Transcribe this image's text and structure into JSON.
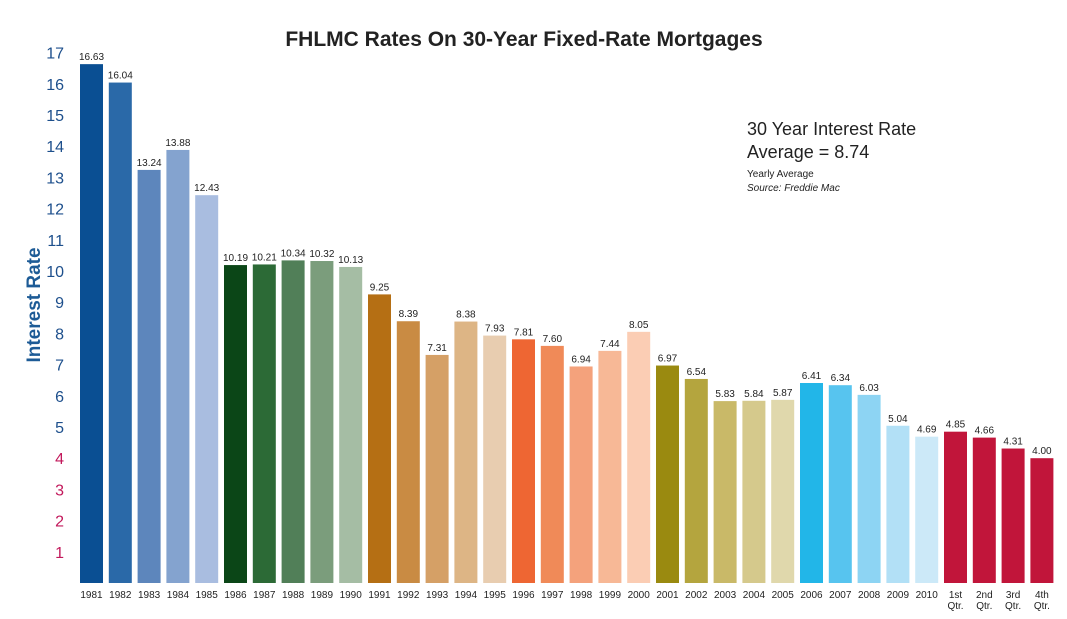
{
  "chart_data": {
    "type": "bar",
    "title": "FHLMC Rates On 30-Year Fixed-Rate Mortgages",
    "xlabel": "",
    "ylabel": "Interest Rate",
    "ylim": [
      0,
      17
    ],
    "yticks": [
      1,
      2,
      3,
      4,
      5,
      6,
      7,
      8,
      9,
      10,
      11,
      12,
      13,
      14,
      15,
      16,
      17
    ],
    "ytick_colors": {
      "1-4": "#c2185b",
      "5-17": "#1d4f8c"
    },
    "grid": false,
    "legend": "none",
    "note": {
      "line1": "30 Year Interest Rate",
      "line2": "Average = 8.74",
      "line3": "Yearly Average",
      "line4": "Source: Freddie Mac"
    },
    "categories": [
      "1981",
      "1982",
      "1983",
      "1984",
      "1985",
      "1986",
      "1987",
      "1988",
      "1989",
      "1990",
      "1991",
      "1992",
      "1993",
      "1994",
      "1995",
      "1996",
      "1997",
      "1998",
      "1999",
      "2000",
      "2001",
      "2002",
      "2003",
      "2004",
      "2005",
      "2006",
      "2007",
      "2008",
      "2009",
      "2010",
      "1st Qtr.",
      "2nd Qtr.",
      "3rd Qtr.",
      "4th Qtr."
    ],
    "values": [
      16.63,
      16.04,
      13.24,
      13.88,
      12.43,
      10.19,
      10.21,
      10.34,
      10.32,
      10.13,
      9.25,
      8.39,
      7.31,
      8.38,
      7.93,
      7.81,
      7.6,
      6.94,
      7.44,
      8.05,
      6.97,
      6.54,
      5.83,
      5.84,
      5.87,
      6.41,
      6.34,
      6.03,
      5.04,
      4.69,
      4.85,
      4.66,
      4.31,
      4.0
    ],
    "value_labels": [
      "16.63",
      "16.04",
      "13.24",
      "13.88",
      "12.43",
      "10.19",
      "10.21",
      "10.34",
      "10.32",
      "10.13",
      "9.25",
      "8.39",
      "7.31",
      "8.38",
      "7.93",
      "7.81",
      "7.60",
      "6.94",
      "7.44",
      "8.05",
      "6.97",
      "6.54",
      "5.83",
      "5.84",
      "5.87",
      "6.41",
      "6.34",
      "6.03",
      "5.04",
      "4.69",
      "4.85",
      "4.66",
      "4.31",
      "4.00"
    ],
    "colors": [
      "#0a4f93",
      "#2a69a8",
      "#5d86bc",
      "#84a3cf",
      "#a9bde0",
      "#0b4617",
      "#2c6a36",
      "#517f58",
      "#7b9d7c",
      "#a5bda4",
      "#b56f14",
      "#c98b43",
      "#d5a066",
      "#ddb585",
      "#e8cdb0",
      "#ee6633",
      "#f08a58",
      "#f4a27c",
      "#f7b896",
      "#fbcdb4",
      "#9a8a10",
      "#b4a53e",
      "#c9b968",
      "#d5c98c",
      "#e0d8ac",
      "#22b6e8",
      "#57c4ef",
      "#8dd4f3",
      "#b2e0f6",
      "#cce9f8",
      "#c1153a",
      "#c1153a",
      "#c1153a",
      "#c1153a"
    ]
  }
}
